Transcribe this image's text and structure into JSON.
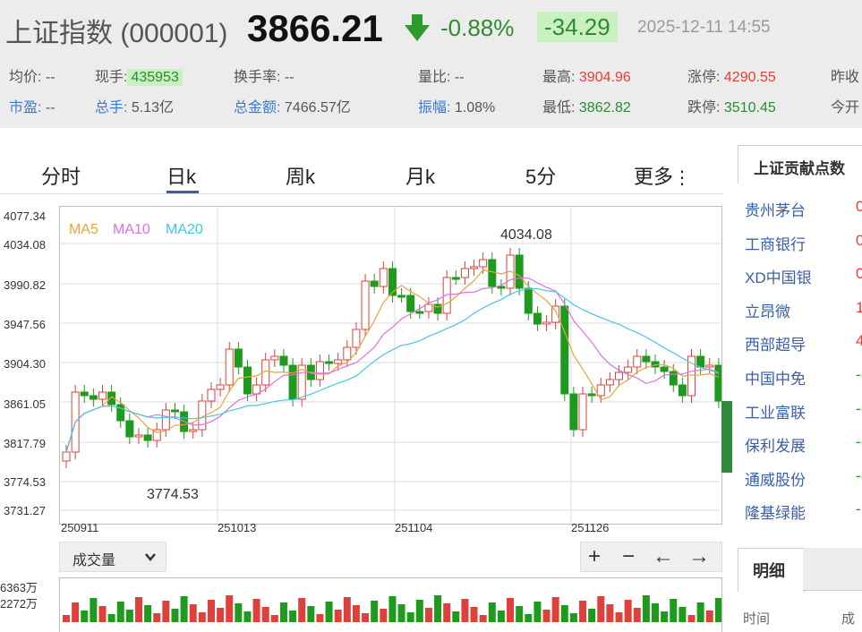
{
  "quote": {
    "name": "上证指数 (000001)",
    "price": "3866.21",
    "change_pct": "-0.88%",
    "change": "-34.29",
    "datetime": "2025-12-11 14:55"
  },
  "stats": {
    "avg_label": "均价:",
    "avg_value": "--",
    "now_vol_label": "现手:",
    "now_vol_value": "435953",
    "turnover_label": "换手率:",
    "turnover_value": "--",
    "vol_ratio_label": "量比:",
    "vol_ratio_value": "--",
    "high_label": "最高:",
    "high_value": "3904.96",
    "limit_up_label": "涨停:",
    "limit_up_value": "4290.55",
    "prev_close_label": "昨收",
    "pe_label": "市盈:",
    "pe_value": "--",
    "total_vol_label": "总手:",
    "total_vol_value": "5.13亿",
    "total_amt_label": "总金额:",
    "total_amt_value": "7466.57亿",
    "amplitude_label": "振幅:",
    "amplitude_value": "1.08%",
    "low_label": "最低:",
    "low_value": "3862.82",
    "limit_down_label": "跌停:",
    "limit_down_value": "3510.45",
    "open_label": "今开"
  },
  "tabs": [
    "分时",
    "日k",
    "周k",
    "月k",
    "5分",
    "更多"
  ],
  "active_tab": "日k",
  "chart": {
    "legend": [
      "MA5",
      "MA10",
      "MA20"
    ],
    "y_ticks": [
      "4077.34",
      "4034.08",
      "3990.82",
      "3947.56",
      "3904.30",
      "3861.05",
      "3817.79",
      "3774.53",
      "3731.27"
    ],
    "x_ticks": [
      "250911",
      "251013",
      "251104",
      "251126"
    ],
    "max_label": "4034.08",
    "min_label": "3774.53"
  },
  "volume": {
    "select_label": "成交量",
    "y_ticks": [
      "6363万",
      "2272万"
    ]
  },
  "nav": {
    "plus": "+",
    "minus": "−",
    "left": "←",
    "right": "→"
  },
  "contrib": {
    "title": "上证贡献点数",
    "stocks": [
      {
        "name": "贵州茅台",
        "val": "0"
      },
      {
        "name": "工商银行",
        "val": "0"
      },
      {
        "name": "XD中国银",
        "val": "0"
      },
      {
        "name": "立昂微",
        "val": "1"
      },
      {
        "name": "西部超导",
        "val": "4"
      },
      {
        "name": "中国中免",
        "val": "-("
      },
      {
        "name": "工业富联",
        "val": "-("
      },
      {
        "name": "保利发展",
        "val": "-("
      },
      {
        "name": "通威股份",
        "val": "-("
      },
      {
        "name": "隆基绿能",
        "val": "-"
      }
    ]
  },
  "detail": {
    "title": "明细",
    "col_time": "时间",
    "col_amt": "成"
  },
  "colors": {
    "up": "#e0403a",
    "down": "#1e9a1e",
    "ma5": "#e8a33d",
    "ma10": "#e070e0",
    "ma20": "#40c8e0"
  }
}
